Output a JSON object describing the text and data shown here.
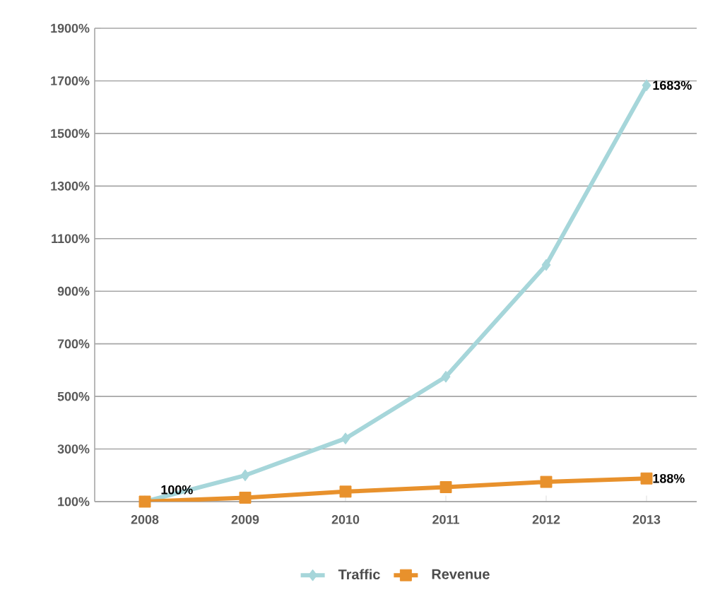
{
  "chart_data": {
    "type": "line",
    "categories": [
      "2008",
      "2009",
      "2010",
      "2011",
      "2012",
      "2013"
    ],
    "series": [
      {
        "name": "Traffic",
        "color": "#a6d6da",
        "marker": "diamond",
        "values": [
          100,
          200,
          340,
          575,
          1000,
          1683
        ],
        "value_labels": [
          "100%",
          null,
          null,
          null,
          null,
          "1683%"
        ]
      },
      {
        "name": "Revenue",
        "color": "#e8912c",
        "marker": "square",
        "values": [
          100,
          115,
          138,
          155,
          175,
          188
        ],
        "value_labels": [
          null,
          null,
          null,
          null,
          null,
          "188%"
        ]
      }
    ],
    "ylim": [
      100,
      1900
    ],
    "yticks": [
      {
        "value": 100,
        "label": "100%"
      },
      {
        "value": 300,
        "label": "300%"
      },
      {
        "value": 500,
        "label": "500%"
      },
      {
        "value": 700,
        "label": "700%"
      },
      {
        "value": 900,
        "label": "900%"
      },
      {
        "value": 1100,
        "label": "1100%"
      },
      {
        "value": 1300,
        "label": "1300%"
      },
      {
        "value": 1500,
        "label": "1500%"
      },
      {
        "value": 1700,
        "label": "1700%"
      },
      {
        "value": 1900,
        "label": "1900%"
      }
    ],
    "grid": "y",
    "legend": "bottom"
  }
}
